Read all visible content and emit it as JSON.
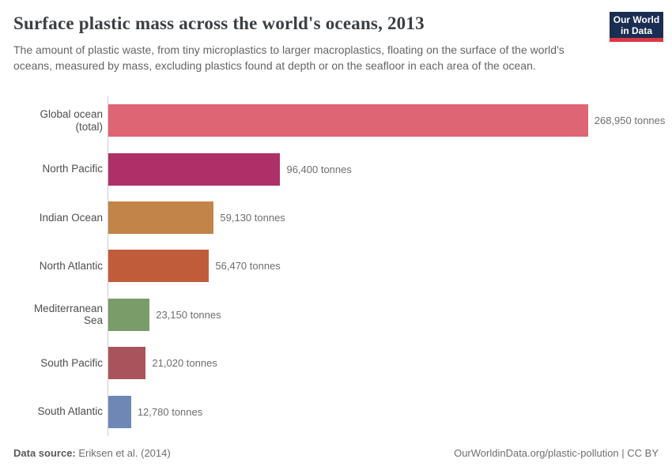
{
  "header": {
    "title": "Surface plastic mass across the world's oceans, 2013",
    "subtitle": "The amount of plastic waste, from tiny microplastics to larger macroplastics, floating on the surface of the world's oceans, measured by mass, excluding plastics found at depth or on the seafloor in each area of the ocean."
  },
  "logo": {
    "line1": "Our World",
    "line2": "in Data",
    "bg_color": "#1a2d52",
    "accent_color": "#dd3744"
  },
  "chart_data": {
    "type": "bar",
    "orientation": "horizontal",
    "title": "Surface plastic mass across the world's oceans, 2013",
    "categories": [
      "Global ocean (total)",
      "North Pacific",
      "Indian Ocean",
      "North Atlantic",
      "Mediterranean Sea",
      "South Pacific",
      "South Atlantic"
    ],
    "values": [
      268950,
      96400,
      59130,
      56470,
      23150,
      21020,
      12780
    ],
    "value_labels": [
      "268,950 tonnes",
      "96,400 tonnes",
      "59,130 tonnes",
      "56,470 tonnes",
      "23,150 tonnes",
      "21,020 tonnes",
      "12,780 tonnes"
    ],
    "unit": "tonnes",
    "colors": [
      "#de6574",
      "#ad3168",
      "#c38447",
      "#c15c3b",
      "#7a9c68",
      "#a9535c",
      "#6e87b5"
    ],
    "xlim": [
      0,
      268950
    ],
    "grid": false,
    "legend": "none",
    "axis_line_color": "#cccccc",
    "category_label_color": "#4e4e4e",
    "value_label_color": "#6e6e6e"
  },
  "footer": {
    "source_label": "Data source:",
    "source_value": " Eriksen et al. (2014)",
    "right_text": "OurWorldinData.org/plastic-pollution | CC BY"
  }
}
